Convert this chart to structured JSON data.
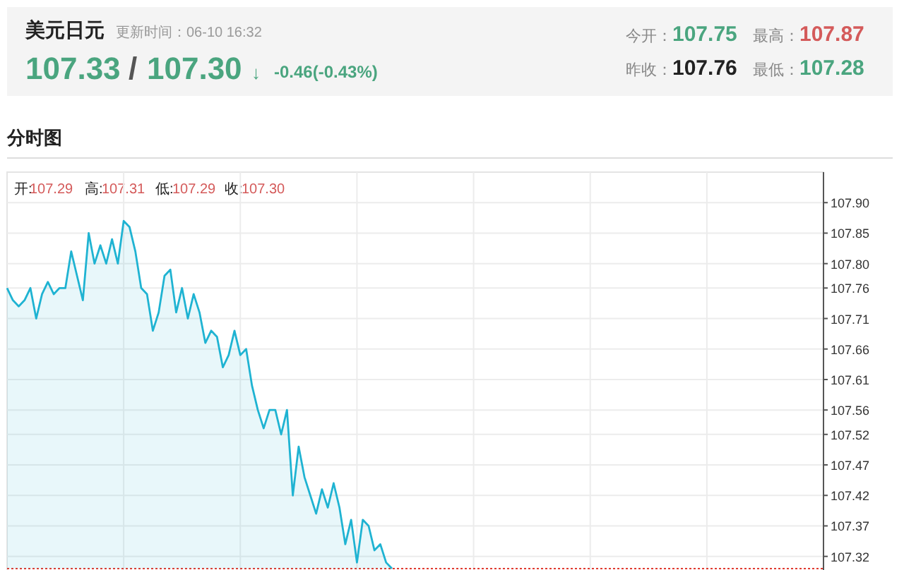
{
  "chart_data": {
    "type": "area",
    "title": "美元日元",
    "subtitle": "更新时间：06-10 16:32",
    "annotations": [
      "107.33",
      "/",
      "107.30",
      "↓",
      "-0.46(-0.43%)",
      "今开：",
      "107.75",
      "最高：",
      "107.87",
      "昨收：",
      "107.76",
      "最低：",
      "107.28",
      "分时图",
      "开:",
      "107.29",
      "高:",
      "107.31",
      "低:",
      "107.29",
      "收:",
      "107.30"
    ],
    "categories": [
      null,
      null,
      null,
      null,
      null,
      null,
      null,
      null,
      null,
      null,
      null,
      null,
      null,
      null,
      null,
      null,
      null,
      null,
      null,
      null,
      null,
      null,
      null,
      null,
      null,
      null,
      null,
      null,
      null,
      null,
      null,
      null,
      null,
      null,
      null,
      null,
      null,
      null,
      null,
      null,
      null,
      null,
      null,
      null,
      null,
      null,
      null,
      null,
      null,
      null,
      null,
      null,
      null,
      null,
      null,
      null,
      null,
      null,
      null,
      null,
      null,
      null,
      null,
      null,
      null,
      null,
      null,
      null,
      null,
      null,
      null,
      null,
      null,
      null,
      null,
      null,
      null,
      null,
      null,
      null,
      null,
      null,
      null,
      null,
      null,
      null,
      null,
      null,
      null,
      null,
      null,
      null,
      null,
      null,
      null,
      null,
      null,
      null,
      null,
      null,
      null,
      null,
      null,
      null,
      null,
      null,
      null,
      null,
      null,
      null,
      null,
      null,
      null,
      null,
      null,
      null,
      null,
      null,
      null,
      null,
      null,
      null,
      null,
      null,
      null,
      null,
      null,
      null,
      null,
      null,
      null,
      null,
      null,
      null,
      null,
      null,
      null,
      null,
      null,
      null,
      null
    ],
    "series": [
      {
        "color": "#1fb3d2",
        "values": [
          107.76,
          107.74,
          107.73,
          107.74,
          107.76,
          107.71,
          107.75,
          107.77,
          107.75,
          107.76,
          107.76,
          107.82,
          107.78,
          107.74,
          107.85,
          107.8,
          107.83,
          107.8,
          107.84,
          107.8,
          107.87,
          107.86,
          107.82,
          107.76,
          107.75,
          107.69,
          107.72,
          107.78,
          107.79,
          107.72,
          107.76,
          107.71,
          107.75,
          107.72,
          107.67,
          107.69,
          107.68,
          107.63,
          107.65,
          107.69,
          107.65,
          107.66,
          107.6,
          107.56,
          107.53,
          107.56,
          107.56,
          107.52,
          107.56,
          107.42,
          107.5,
          107.45,
          107.42,
          107.39,
          107.43,
          107.4,
          107.44,
          107.4,
          107.34,
          107.38,
          107.31,
          107.38,
          107.37,
          107.33,
          107.34,
          107.31,
          107.3,
          null,
          null,
          null,
          null,
          null,
          null,
          null,
          null,
          null,
          null,
          null,
          null,
          null,
          null,
          null,
          null,
          null,
          null,
          null,
          null,
          null,
          null,
          null,
          null,
          null,
          null,
          null,
          null,
          null,
          null,
          null,
          null,
          null,
          null,
          null,
          null,
          null,
          null,
          null,
          null,
          null,
          null,
          null,
          null,
          null,
          null,
          null,
          null,
          null,
          null,
          null,
          null,
          null,
          null,
          null,
          null,
          null,
          null,
          null,
          null,
          null,
          null,
          null,
          null,
          null,
          null,
          null,
          null,
          null,
          null,
          null,
          null,
          null,
          null
        ]
      }
    ],
    "ylim": [
      107.3,
      107.95
    ],
    "yticks": [
      {
        "value": 107.9,
        "label": "107.90"
      },
      107.85,
      {
        "value": 107.8,
        "label": "107.80"
      },
      107.76,
      107.71,
      107.66,
      107.61,
      107.56,
      107.52,
      107.47,
      107.42,
      107.37,
      107.32
    ],
    "tick_labels": "y",
    "grid": true,
    "ref_lines": [
      {
        "axis": "y",
        "value": 107.3,
        "color": "#e03c31",
        "line_style": "dotted"
      }
    ]
  }
}
